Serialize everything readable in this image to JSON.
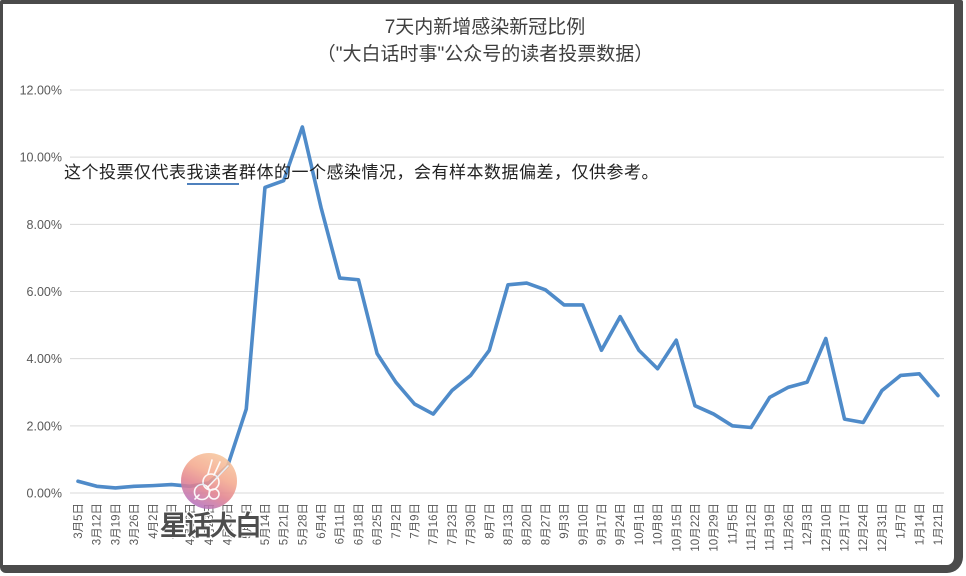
{
  "chart_data": {
    "type": "line",
    "title": "7天内新增感染新冠比例",
    "subtitle": "（\"大白话时事\"公众号的读者投票数据）",
    "categories": [
      "3月5日",
      "3月12日",
      "3月19日",
      "3月26日",
      "4月2日",
      "4月9日",
      "4月16日",
      "4月23日",
      "4月30日",
      "5月7日",
      "5月14日",
      "5月21日",
      "5月28日",
      "6月4日",
      "6月11日",
      "6月18日",
      "6月25日",
      "7月2日",
      "7月9日",
      "7月16日",
      "7月23日",
      "7月30日",
      "8月7日",
      "8月13日",
      "8月20日",
      "8月27日",
      "9月3日",
      "9月10日",
      "9月17日",
      "9月24日",
      "10月1日",
      "10月8日",
      "10月15日",
      "10月22日",
      "10月29日",
      "11月5日",
      "11月12日",
      "11月19日",
      "11月26日",
      "12月3日",
      "12月10日",
      "12月17日",
      "12月24日",
      "12月31日",
      "1月7日",
      "1月14日",
      "1月21日"
    ],
    "values": [
      0.35,
      0.2,
      0.15,
      0.2,
      0.22,
      0.25,
      0.2,
      0.3,
      0.8,
      2.5,
      9.1,
      9.3,
      10.9,
      8.5,
      6.4,
      6.35,
      4.15,
      3.3,
      2.65,
      2.35,
      3.05,
      3.5,
      4.25,
      6.2,
      6.25,
      6.05,
      5.6,
      5.6,
      4.25,
      5.25,
      4.25,
      3.7,
      4.55,
      2.6,
      2.35,
      2.0,
      1.95,
      2.85,
      3.15,
      3.3,
      4.6,
      2.2,
      2.1,
      3.05,
      3.5,
      3.55,
      2.9
    ],
    "ylim": [
      0,
      12
    ],
    "yticks": [
      0,
      2,
      4,
      6,
      8,
      10,
      12
    ],
    "ytick_labels": [
      "0.00%",
      "2.00%",
      "4.00%",
      "6.00%",
      "8.00%",
      "10.00%",
      "12.00%"
    ],
    "grid": true,
    "legend": "none",
    "colors": {
      "series": "#4f8bc9",
      "gridline": "#d9d9d9",
      "axis_text": "#595959",
      "title_text": "#3f3f3f"
    }
  },
  "annotation": {
    "pre": "这个投票仅代表",
    "underlined": "我读者",
    "post": "群体的一个感染情况，会有样本数据偏差，仅供参考。"
  },
  "watermark": {
    "text": "星话大白",
    "badge": "rabbit-magnifier-logo"
  }
}
